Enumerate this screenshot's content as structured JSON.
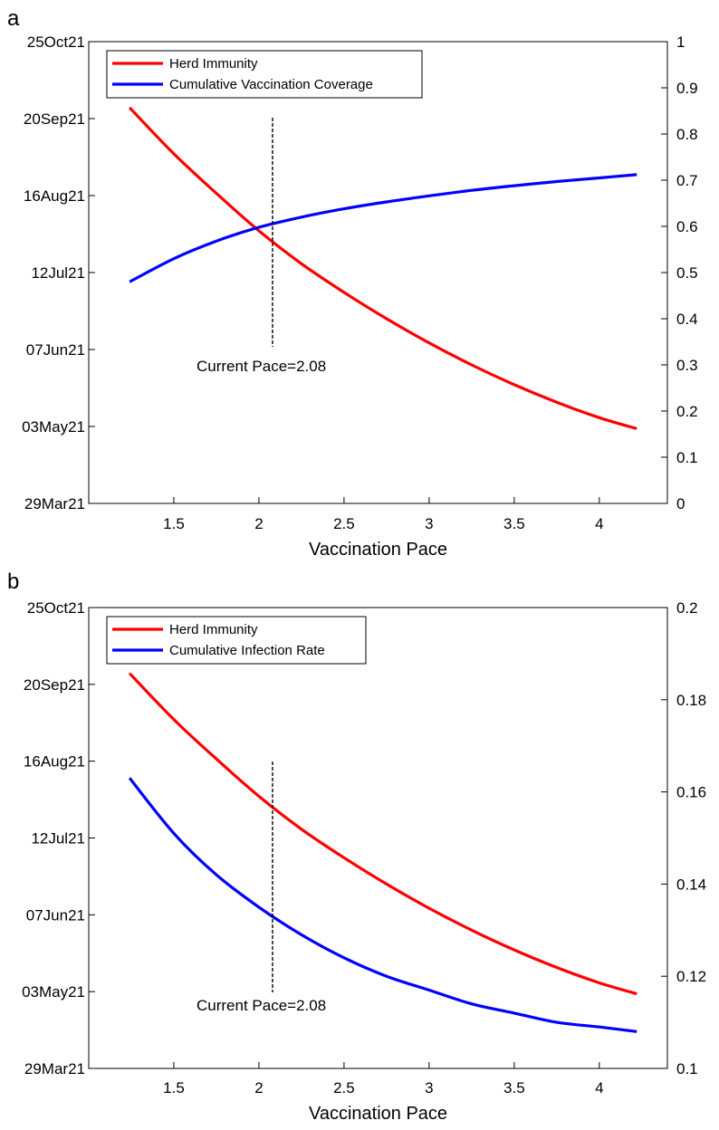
{
  "chart_data": [
    {
      "panel_label": "a",
      "type": "line",
      "xlabel": "Vaccination Pace",
      "x_ticks": [
        "1.5",
        "2",
        "2.5",
        "3",
        "3.5",
        "4"
      ],
      "xlim": [
        1.0,
        4.4
      ],
      "y_left": {
        "ticks": [
          "25Oct21",
          "20Sep21",
          "16Aug21",
          "12Jul21",
          "07Jun21",
          "03May21",
          "29Mar21"
        ],
        "range": [
          "29Mar21",
          "25Oct21"
        ]
      },
      "y_right": {
        "ticks": [
          "1",
          "0.9",
          "0.8",
          "0.7",
          "0.6",
          "0.5",
          "0.4",
          "0.3",
          "0.2",
          "0.1",
          "0"
        ],
        "range": [
          0,
          1
        ]
      },
      "legend": {
        "placement": "top-left"
      },
      "series": [
        {
          "name": "Herd Immunity",
          "color": "#ff0000",
          "axis": "left",
          "x": [
            1.24,
            1.5,
            1.75,
            2.0,
            2.25,
            2.5,
            2.75,
            3.0,
            3.25,
            3.5,
            3.75,
            4.0,
            4.22
          ],
          "y": [
            "2021-09-25",
            "2021-09-04",
            "2021-08-17",
            "2021-07-31",
            "2021-07-16",
            "2021-07-03",
            "2021-06-21",
            "2021-06-10",
            "2021-05-31",
            "2021-05-22",
            "2021-05-14",
            "2021-05-07",
            "2021-05-02"
          ]
        },
        {
          "name": "Cumulative Vaccination Coverage",
          "color": "#0000ff",
          "axis": "right",
          "x": [
            1.24,
            1.5,
            1.75,
            2.0,
            2.25,
            2.5,
            2.75,
            3.0,
            3.25,
            3.5,
            3.75,
            4.0,
            4.22
          ],
          "y": [
            0.48,
            0.53,
            0.568,
            0.598,
            0.62,
            0.638,
            0.653,
            0.666,
            0.678,
            0.688,
            0.697,
            0.705,
            0.712
          ]
        }
      ],
      "annotation": {
        "text": "Current Pace=2.08",
        "x": 2.08
      }
    },
    {
      "panel_label": "b",
      "type": "line",
      "xlabel": "Vaccination Pace",
      "x_ticks": [
        "1.5",
        "2",
        "2.5",
        "3",
        "3.5",
        "4"
      ],
      "xlim": [
        1.0,
        4.4
      ],
      "y_left": {
        "ticks": [
          "25Oct21",
          "20Sep21",
          "16Aug21",
          "12Jul21",
          "07Jun21",
          "03May21",
          "29Mar21"
        ],
        "range": [
          "29Mar21",
          "25Oct21"
        ]
      },
      "y_right": {
        "ticks": [
          "0.2",
          "0.18",
          "0.16",
          "0.14",
          "0.12",
          "0.1"
        ],
        "range": [
          0.1,
          0.2
        ]
      },
      "legend": {
        "placement": "top-left"
      },
      "series": [
        {
          "name": "Herd Immunity",
          "color": "#ff0000",
          "axis": "left",
          "x": [
            1.24,
            1.5,
            1.75,
            2.0,
            2.25,
            2.5,
            2.75,
            3.0,
            3.25,
            3.5,
            3.75,
            4.0,
            4.22
          ],
          "y": [
            "2021-09-25",
            "2021-09-04",
            "2021-08-17",
            "2021-07-31",
            "2021-07-16",
            "2021-07-03",
            "2021-06-21",
            "2021-06-10",
            "2021-05-31",
            "2021-05-22",
            "2021-05-14",
            "2021-05-07",
            "2021-05-02"
          ]
        },
        {
          "name": "Cumulative Infection Rate",
          "color": "#0000ff",
          "axis": "right",
          "x": [
            1.24,
            1.5,
            1.75,
            2.0,
            2.25,
            2.5,
            2.75,
            3.0,
            3.25,
            3.5,
            3.75,
            4.0,
            4.22
          ],
          "y": [
            0.163,
            0.151,
            0.142,
            0.135,
            0.129,
            0.124,
            0.12,
            0.117,
            0.114,
            0.112,
            0.11,
            0.109,
            0.108
          ]
        }
      ],
      "annotation": {
        "text": "Current Pace=2.08",
        "x": 2.08
      }
    }
  ]
}
